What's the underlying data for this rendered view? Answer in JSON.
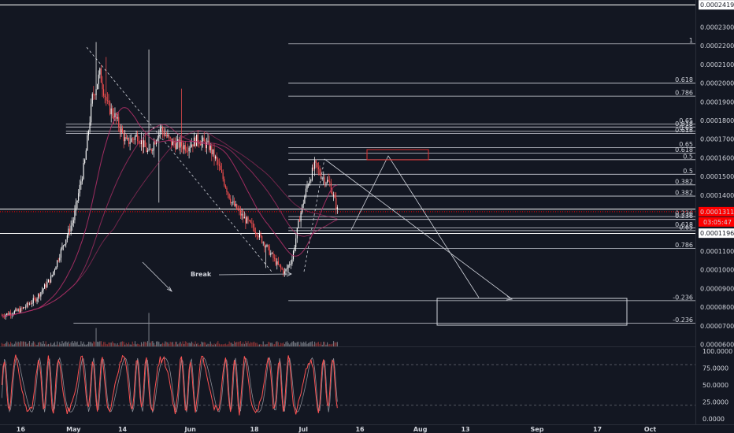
{
  "chart_data": {
    "type": "candlestick",
    "price_axis": {
      "range": [
        5.9e-05,
        0.0002445
      ],
      "ticks": [
        "0.00024191",
        "0.00023000",
        "0.00022000",
        "0.00021000",
        "0.00020000",
        "0.00019000",
        "0.00018000",
        "0.00017000",
        "0.00016000",
        "0.00015000",
        "0.00014000",
        "0.00013113",
        "0.00011964",
        "0.00011000",
        "0.00010000",
        "0.00009000",
        "0.00008000",
        "0.00007000",
        "0.00006000"
      ],
      "current_price": "0.00013113",
      "countdown": "03:05:47",
      "marked_level": "0.00011964"
    },
    "date_axis": {
      "ticks": [
        {
          "label": "16",
          "day": -14
        },
        {
          "label": "May",
          "day": 0
        },
        {
          "label": "14",
          "day": 13
        },
        {
          "label": "Jun",
          "day": 31
        },
        {
          "label": "18",
          "day": 48
        },
        {
          "label": "Jul",
          "day": 61
        },
        {
          "label": "16",
          "day": 76
        },
        {
          "label": "Aug",
          "day": 92
        },
        {
          "label": "13",
          "day": 104
        },
        {
          "label": "Sep",
          "day": 123
        },
        {
          "label": "17",
          "day": 139
        },
        {
          "label": "Oct",
          "day": 153
        }
      ],
      "day_range": [
        -19.5,
        165.0
      ]
    },
    "fib_levels": [
      {
        "label": "1",
        "price": 0.000221,
        "from": 57
      },
      {
        "label": "0.618",
        "price": 0.0002,
        "from": 57
      },
      {
        "label": "0.786",
        "price": 0.000193,
        "from": 57
      },
      {
        "label": "0.65",
        "price": 0.000178,
        "from": -2
      },
      {
        "label": "0.618",
        "price": 0.0001765,
        "from": -2
      },
      {
        "label": "0.65",
        "price": 0.0001742,
        "from": -2
      },
      {
        "label": "0.618",
        "price": 0.000173,
        "from": -2
      },
      {
        "label": "0.65",
        "price": 0.0001655,
        "from": 57
      },
      {
        "label": "0.618",
        "price": 0.0001625,
        "from": 57
      },
      {
        "label": "0.5",
        "price": 0.000159,
        "from": 57
      },
      {
        "label": "0.5",
        "price": 0.0001512,
        "from": 57
      },
      {
        "label": "0.382",
        "price": 0.0001455,
        "from": 57
      },
      {
        "label": "0.382",
        "price": 0.0001395,
        "from": 57
      },
      {
        "label": "0.236",
        "price": 0.0001285,
        "from": 57
      },
      {
        "label": "0.236",
        "price": 0.000127,
        "from": 57
      },
      {
        "label": "0.618",
        "price": 0.0001225,
        "from": 57
      },
      {
        "label": "0.65",
        "price": 0.000121,
        "from": 57
      },
      {
        "label": "0.786",
        "price": 0.0001115,
        "from": 57
      },
      {
        "label": "-0.236",
        "price": 8.35e-05,
        "from": 57
      },
      {
        "label": "-0.236",
        "price": 7.15e-05,
        "from": 0
      }
    ],
    "annotations": {
      "break_label": "Break"
    },
    "oscillator": {
      "ticks": [
        "100.0000",
        "75.0000",
        "50.0000",
        "25.0000",
        "0.0000"
      ],
      "range": [
        0,
        100
      ],
      "bands": [
        80,
        20
      ]
    },
    "colors": {
      "background": "#131722",
      "up": "#ffffff",
      "down": "#ff5252",
      "ma": "#b03068",
      "current": "#ff0000",
      "oscillator": "#ff5252"
    }
  }
}
